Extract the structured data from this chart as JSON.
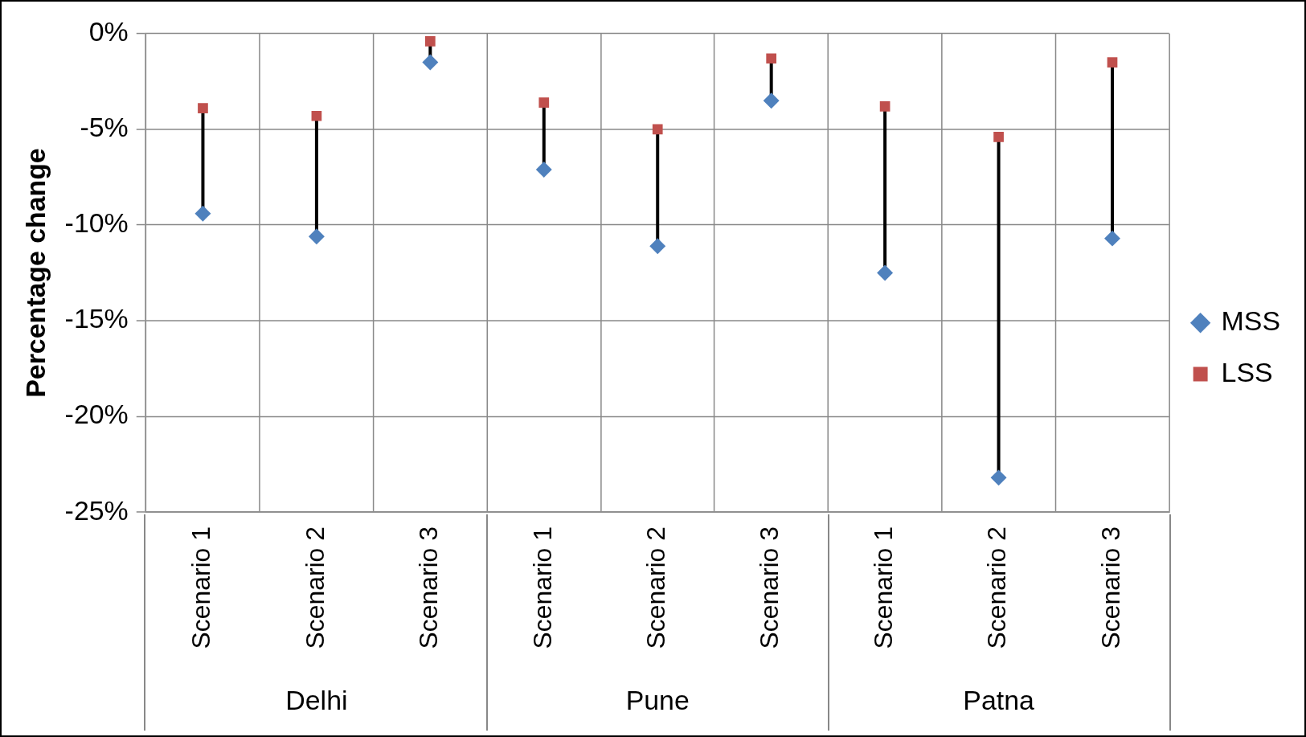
{
  "chart_data": {
    "type": "scatter",
    "ylabel": "Percentage change",
    "categories": [
      "Scenario 1",
      "Scenario 2",
      "Scenario 3",
      "Scenario 1",
      "Scenario 2",
      "Scenario 3",
      "Scenario 1",
      "Scenario 2",
      "Scenario 3"
    ],
    "annotations": [
      "Delhi",
      "Pune",
      "Patna"
    ],
    "series": [
      {
        "name": "MSS",
        "color": "#4f81bd",
        "marker": "diamond",
        "values": [
          -9.4,
          -10.6,
          -1.5,
          -7.1,
          -11.1,
          -3.5,
          -12.5,
          -23.2,
          -10.7
        ]
      },
      {
        "name": "LSS",
        "color": "#c0504d",
        "marker": "square",
        "values": [
          -3.9,
          -4.3,
          -0.4,
          -3.6,
          -5.0,
          -1.3,
          -3.8,
          -5.4,
          -1.5
        ]
      }
    ],
    "ylim": [
      -25,
      0
    ],
    "yticks": [
      {
        "value": 0,
        "label": "0%"
      },
      {
        "value": -5,
        "label": "-5%"
      },
      {
        "value": -10,
        "label": "-10%"
      },
      {
        "value": -15,
        "label": "-15%"
      },
      {
        "value": -20,
        "label": "-20%"
      },
      {
        "value": -25,
        "label": "-25%"
      }
    ],
    "grid": true,
    "legend": "right"
  }
}
